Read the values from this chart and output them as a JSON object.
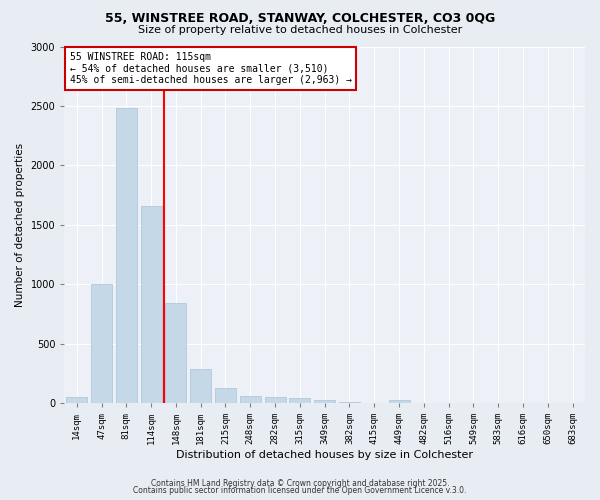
{
  "title1": "55, WINSTREE ROAD, STANWAY, COLCHESTER, CO3 0QG",
  "title2": "Size of property relative to detached houses in Colchester",
  "xlabel": "Distribution of detached houses by size in Colchester",
  "ylabel": "Number of detached properties",
  "categories": [
    "14sqm",
    "47sqm",
    "81sqm",
    "114sqm",
    "148sqm",
    "181sqm",
    "215sqm",
    "248sqm",
    "282sqm",
    "315sqm",
    "349sqm",
    "382sqm",
    "415sqm",
    "449sqm",
    "482sqm",
    "516sqm",
    "549sqm",
    "583sqm",
    "616sqm",
    "650sqm",
    "683sqm"
  ],
  "values": [
    50,
    1005,
    2480,
    1660,
    840,
    290,
    130,
    60,
    50,
    40,
    30,
    10,
    0,
    30,
    0,
    0,
    0,
    0,
    0,
    0,
    0
  ],
  "bar_color": "#c5d8e8",
  "bar_edgecolor": "#a8c4d8",
  "red_line_x": 3.5,
  "annotation_title": "55 WINSTREE ROAD: 115sqm",
  "annotation_line1": "← 54% of detached houses are smaller (3,510)",
  "annotation_line2": "45% of semi-detached houses are larger (2,963) →",
  "annotation_box_facecolor": "#ffffff",
  "annotation_box_edgecolor": "#cc0000",
  "ylim": [
    0,
    3000
  ],
  "yticks": [
    0,
    500,
    1000,
    1500,
    2000,
    2500,
    3000
  ],
  "footer1": "Contains HM Land Registry data © Crown copyright and database right 2025.",
  "footer2": "Contains public sector information licensed under the Open Government Licence v.3.0.",
  "bg_color": "#e8edf4",
  "plot_bg_color": "#edf1f7",
  "grid_color": "#ffffff",
  "title1_fontsize": 9,
  "title2_fontsize": 8,
  "ylabel_fontsize": 7.5,
  "xlabel_fontsize": 8,
  "tick_fontsize": 6.5,
  "footer_fontsize": 5.5
}
